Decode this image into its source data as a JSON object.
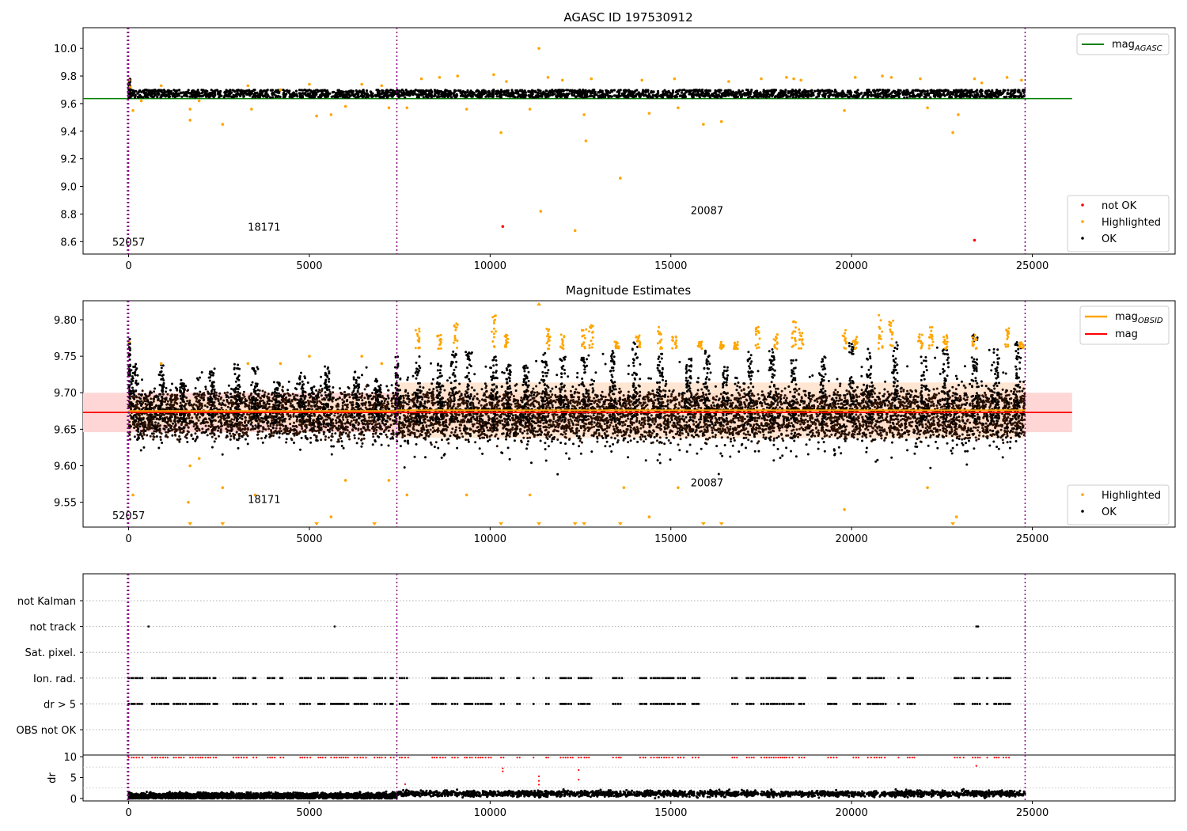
{
  "chart_data": [
    {
      "type": "scatter",
      "title": "AGASC ID 197530912",
      "xlim": [
        -1260,
        28950
      ],
      "ylim": [
        8.51,
        10.15
      ],
      "xticks": [
        0,
        5000,
        10000,
        15000,
        20000,
        25000
      ],
      "yticks": [
        8.6,
        8.8,
        9.0,
        9.2,
        9.4,
        9.6,
        9.8,
        10.0
      ],
      "tick_format": 1,
      "obsid_lines_x": [
        0,
        7420,
        24800
      ],
      "obsid_labels": [
        {
          "text": "52057",
          "x": 0,
          "y": 8.57
        },
        {
          "text": "18171",
          "x": 3750,
          "y": 8.68
        },
        {
          "text": "20087",
          "x": 16000,
          "y": 8.8
        }
      ],
      "reference_line": {
        "label": "mag_AGASC",
        "color": "#008000",
        "y": 9.636,
        "x_range": [
          -1260,
          26100
        ]
      },
      "ok_band": {
        "center": 9.672,
        "halfwidth": 0.028,
        "color": "#000000"
      },
      "highlighted_points": [
        [
          9,
          9.77
        ],
        [
          40,
          9.72
        ],
        [
          120,
          9.55
        ],
        [
          350,
          9.62
        ],
        [
          900,
          9.73
        ],
        [
          1700,
          9.56
        ],
        [
          1700,
          9.48
        ],
        [
          1950,
          9.62
        ],
        [
          2600,
          9.45
        ],
        [
          3300,
          9.73
        ],
        [
          3400,
          9.56
        ],
        [
          4200,
          9.7
        ],
        [
          5000,
          9.74
        ],
        [
          5200,
          9.51
        ],
        [
          5600,
          9.52
        ],
        [
          6000,
          9.58
        ],
        [
          6450,
          9.74
        ],
        [
          7000,
          9.73
        ],
        [
          7200,
          9.57
        ],
        [
          7700,
          9.57
        ],
        [
          8100,
          9.78
        ],
        [
          8600,
          9.79
        ],
        [
          9100,
          9.8
        ],
        [
          9350,
          9.56
        ],
        [
          10100,
          9.81
        ],
        [
          10300,
          9.39
        ],
        [
          10450,
          9.76
        ],
        [
          11100,
          9.56
        ],
        [
          11350,
          10.0
        ],
        [
          11400,
          8.82
        ],
        [
          11600,
          9.79
        ],
        [
          12000,
          9.77
        ],
        [
          12350,
          8.68
        ],
        [
          12600,
          9.52
        ],
        [
          12650,
          9.33
        ],
        [
          12800,
          9.78
        ],
        [
          13600,
          9.06
        ],
        [
          14200,
          9.77
        ],
        [
          14400,
          9.53
        ],
        [
          15100,
          9.78
        ],
        [
          15200,
          9.57
        ],
        [
          15900,
          9.45
        ],
        [
          16400,
          9.47
        ],
        [
          16600,
          9.76
        ],
        [
          17500,
          9.78
        ],
        [
          18200,
          9.79
        ],
        [
          18400,
          9.78
        ],
        [
          18600,
          9.77
        ],
        [
          19800,
          9.55
        ],
        [
          20100,
          9.79
        ],
        [
          20850,
          9.8
        ],
        [
          21100,
          9.79
        ],
        [
          21900,
          9.78
        ],
        [
          22100,
          9.57
        ],
        [
          22800,
          9.39
        ],
        [
          22950,
          9.52
        ],
        [
          23400,
          9.78
        ],
        [
          23600,
          9.75
        ],
        [
          24300,
          9.79
        ],
        [
          24700,
          9.77
        ]
      ],
      "not_ok_points": [
        [
          10350,
          8.71
        ],
        [
          23400,
          8.61
        ]
      ],
      "legends": [
        {
          "position": "upper-right",
          "entries": [
            {
              "label": "mag",
              "sub": "AGASC",
              "color": "#008000",
              "marker": "line"
            }
          ]
        },
        {
          "position": "lower-right",
          "entries": [
            {
              "label": "not OK",
              "color": "#ff0000",
              "marker": "dot"
            },
            {
              "label": "Highlighted",
              "color": "#ffa500",
              "marker": "dot"
            },
            {
              "label": "OK",
              "color": "#000000",
              "marker": "dot"
            }
          ]
        }
      ]
    },
    {
      "type": "scatter",
      "title": "Magnitude Estimates",
      "xlim": [
        -1260,
        28950
      ],
      "ylim": [
        9.516,
        9.826
      ],
      "xticks": [
        0,
        5000,
        10000,
        15000,
        20000,
        25000
      ],
      "yticks": [
        9.55,
        9.6,
        9.65,
        9.7,
        9.75,
        9.8
      ],
      "tick_format": 2,
      "obsid_lines_x": [
        0,
        7420,
        24800
      ],
      "obsid_labels": [
        {
          "text": "52057",
          "x": 0,
          "y": 9.527
        },
        {
          "text": "18171",
          "x": 3750,
          "y": 9.549
        },
        {
          "text": "20087",
          "x": 16000,
          "y": 9.572
        }
      ],
      "mag_band": {
        "y": 9.673,
        "halfwidth": 0.027,
        "x_range": [
          -1260,
          26100
        ],
        "fill": "#ffd6d6"
      },
      "mag_line": {
        "label": "mag",
        "color": "#ff0000",
        "y": 9.673
      },
      "obsid_segments": [
        {
          "x_range": [
            0,
            7420
          ],
          "y": 9.675,
          "sigma": 0.018
        },
        {
          "x_range": [
            7420,
            24800
          ],
          "y": 9.676,
          "sigma": 0.038
        }
      ],
      "obsid_line_color": "#ffa500",
      "ok_spread": {
        "center": 9.67,
        "halfwidth": 0.028
      },
      "bursts": [
        [
          150,
          9.74
        ],
        [
          900,
          9.74
        ],
        [
          1500,
          9.72
        ],
        [
          2300,
          9.73
        ],
        [
          3000,
          9.74
        ],
        [
          3500,
          9.74
        ],
        [
          4100,
          9.72
        ],
        [
          4800,
          9.73
        ],
        [
          5500,
          9.74
        ],
        [
          6300,
          9.73
        ],
        [
          6900,
          9.72
        ],
        [
          7450,
          9.75
        ],
        [
          8000,
          9.75
        ],
        [
          8600,
          9.74
        ],
        [
          9000,
          9.76
        ],
        [
          9400,
          9.76
        ],
        [
          10100,
          9.75
        ],
        [
          10500,
          9.74
        ],
        [
          11000,
          9.74
        ],
        [
          11500,
          9.76
        ],
        [
          12000,
          9.75
        ],
        [
          12600,
          9.75
        ],
        [
          13400,
          9.76
        ],
        [
          14000,
          9.77
        ],
        [
          14700,
          9.76
        ],
        [
          15500,
          9.75
        ],
        [
          16000,
          9.76
        ],
        [
          16500,
          9.74
        ],
        [
          17200,
          9.76
        ],
        [
          17800,
          9.76
        ],
        [
          18400,
          9.75
        ],
        [
          19200,
          9.75
        ],
        [
          20000,
          9.77
        ],
        [
          20500,
          9.76
        ],
        [
          21200,
          9.77
        ],
        [
          22000,
          9.75
        ],
        [
          22600,
          9.76
        ],
        [
          23400,
          9.78
        ],
        [
          24000,
          9.76
        ],
        [
          24600,
          9.77
        ]
      ],
      "highlighted_clusters": [
        [
          8000,
          9.79
        ],
        [
          8600,
          9.78
        ],
        [
          9050,
          9.8
        ],
        [
          10100,
          9.81
        ],
        [
          10450,
          9.78
        ],
        [
          11600,
          9.79
        ],
        [
          12000,
          9.78
        ],
        [
          12600,
          9.79
        ],
        [
          12800,
          9.8
        ],
        [
          13500,
          9.77
        ],
        [
          14100,
          9.78
        ],
        [
          14700,
          9.79
        ],
        [
          15100,
          9.78
        ],
        [
          15800,
          9.77
        ],
        [
          16400,
          9.77
        ],
        [
          16800,
          9.77
        ],
        [
          17400,
          9.79
        ],
        [
          17900,
          9.78
        ],
        [
          18400,
          9.8
        ],
        [
          18600,
          9.79
        ],
        [
          19800,
          9.79
        ],
        [
          20100,
          9.78
        ],
        [
          20800,
          9.81
        ],
        [
          21100,
          9.8
        ],
        [
          21900,
          9.78
        ],
        [
          22200,
          9.79
        ],
        [
          22600,
          9.78
        ],
        [
          23400,
          9.78
        ],
        [
          24300,
          9.79
        ],
        [
          24700,
          9.77
        ]
      ],
      "highlighted_points": [
        [
          9,
          9.77
        ],
        [
          120,
          9.56
        ],
        [
          900,
          9.74
        ],
        [
          1650,
          9.55
        ],
        [
          1700,
          9.6
        ],
        [
          1950,
          9.61
        ],
        [
          2600,
          9.57
        ],
        [
          3300,
          9.74
        ],
        [
          3500,
          9.56
        ],
        [
          4200,
          9.74
        ],
        [
          5000,
          9.75
        ],
        [
          5600,
          9.53
        ],
        [
          6000,
          9.58
        ],
        [
          6450,
          9.75
        ],
        [
          7000,
          9.74
        ],
        [
          7200,
          9.58
        ],
        [
          7700,
          9.56
        ],
        [
          9350,
          9.56
        ],
        [
          11100,
          9.56
        ],
        [
          13700,
          9.57
        ],
        [
          14400,
          9.53
        ],
        [
          15200,
          9.57
        ],
        [
          19800,
          9.54
        ],
        [
          22100,
          9.57
        ],
        [
          22900,
          9.53
        ]
      ],
      "below_range_markers_x": [
        1700,
        2600,
        5200,
        6800,
        10300,
        11350,
        12350,
        12600,
        13600,
        15900,
        16400,
        22800
      ],
      "above_range_markers_x": [
        11350
      ],
      "legends": [
        {
          "position": "upper-right",
          "entries": [
            {
              "label": "mag",
              "sub": "OBSID",
              "color": "#ffa500",
              "marker": "line"
            },
            {
              "label": "mag",
              "color": "#ff0000",
              "marker": "line"
            }
          ]
        },
        {
          "position": "lower-right",
          "entries": [
            {
              "label": "Highlighted",
              "color": "#ffa500",
              "marker": "dot"
            },
            {
              "label": "OK",
              "color": "#000000",
              "marker": "dot"
            }
          ]
        }
      ]
    },
    {
      "type": "scatter",
      "xlim": [
        -1260,
        28950
      ],
      "xticks": [],
      "obsid_lines_x": [
        0,
        7420,
        24800
      ],
      "flag_categories": [
        "not Kalman",
        "not track",
        "Sat. pixel.",
        "Ion. rad.",
        "dr > 5",
        "OBS not OK"
      ],
      "flag_points": {
        "not track": [
          [
            550,
            0
          ],
          [
            5700,
            0
          ],
          [
            23450,
            0
          ],
          [
            23500,
            0
          ]
        ]
      },
      "flag_clusters": [
        [
          0,
          400
        ],
        [
          650,
          1100
        ],
        [
          1250,
          1600
        ],
        [
          1700,
          2300
        ],
        [
          2350,
          2450
        ],
        [
          2900,
          3300
        ],
        [
          3450,
          3550
        ],
        [
          3850,
          4050
        ],
        [
          4200,
          4300
        ],
        [
          4750,
          5050
        ],
        [
          5250,
          5450
        ],
        [
          5600,
          6100
        ],
        [
          6250,
          6600
        ],
        [
          6800,
          7050
        ],
        [
          7100,
          7150
        ],
        [
          7250,
          7350
        ],
        [
          7500,
          7750
        ],
        [
          8400,
          8800
        ],
        [
          8950,
          9150
        ],
        [
          9300,
          9550
        ],
        [
          9600,
          10050
        ],
        [
          10300,
          10400
        ],
        [
          10750,
          10850
        ],
        [
          11200,
          11250
        ],
        [
          11550,
          11650
        ],
        [
          11950,
          12300
        ],
        [
          12450,
          12800
        ],
        [
          13400,
          13650
        ],
        [
          14150,
          14350
        ],
        [
          14450,
          15100
        ],
        [
          15200,
          15400
        ],
        [
          15600,
          15800
        ],
        [
          16700,
          16850
        ],
        [
          17100,
          17300
        ],
        [
          17500,
          17600
        ],
        [
          17650,
          18150
        ],
        [
          18200,
          18400
        ],
        [
          18550,
          18750
        ],
        [
          19350,
          19600
        ],
        [
          20050,
          20250
        ],
        [
          20450,
          20950
        ],
        [
          21300,
          21350
        ],
        [
          21550,
          21750
        ],
        [
          22850,
          23050
        ],
        [
          23100,
          23150
        ],
        [
          23350,
          23600
        ],
        [
          23750,
          23800
        ],
        [
          23950,
          24150
        ],
        [
          24200,
          24400
        ]
      ]
    },
    {
      "type": "scatter",
      "ylabel": "dr",
      "xlim": [
        -1260,
        28950
      ],
      "ylim": [
        -0.6,
        10.4
      ],
      "xticks": [
        0,
        5000,
        10000,
        15000,
        20000,
        25000
      ],
      "yticks": [
        0,
        5,
        10
      ],
      "obsid_lines_x": [
        0,
        7420,
        24800
      ],
      "dr_levels": [
        {
          "x_range": [
            0,
            7420
          ],
          "y": 0.6
        },
        {
          "x_range": [
            7420,
            24800
          ],
          "y": 1.15
        }
      ],
      "dr_spikes": [
        [
          7650,
          3.4
        ],
        [
          10350,
          7.2
        ],
        [
          10350,
          6.5
        ],
        [
          11350,
          5.3
        ],
        [
          11350,
          4.2
        ],
        [
          11350,
          3.3
        ],
        [
          12450,
          6.8
        ],
        [
          12450,
          4.5
        ],
        [
          23450,
          7.8
        ]
      ],
      "clipped_level": 9.8,
      "clipped_color": "#ff0000"
    }
  ]
}
